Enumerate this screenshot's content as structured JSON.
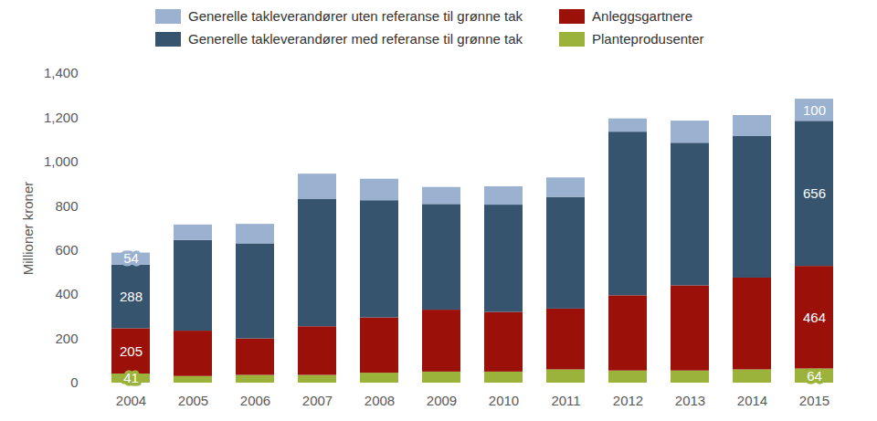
{
  "chart_data": {
    "type": "bar",
    "stacked": true,
    "data_labels": true,
    "legend": "top",
    "grid": false,
    "y_label": "Millioner kroner",
    "categories": [
      "2004",
      "2005",
      "2006",
      "2007",
      "2008",
      "2009",
      "2010",
      "2011",
      "2012",
      "2013",
      "2014",
      "2015"
    ],
    "ylim": [
      0,
      1400
    ],
    "yticks": [
      0,
      200,
      400,
      600,
      800,
      {
        "value": 1000,
        "label": "1,000"
      },
      {
        "value": 1200,
        "label": "1,200"
      },
      {
        "value": 1400,
        "label": "1,400"
      }
    ],
    "series": [
      {
        "name": "Planteprodusenter",
        "color": "#9bb33b",
        "values": [
          41,
          30,
          35,
          35,
          45,
          50,
          50,
          60,
          55,
          55,
          60,
          64
        ],
        "value_labels": [
          "41",
          null,
          null,
          null,
          null,
          null,
          null,
          null,
          null,
          null,
          null,
          "64"
        ]
      },
      {
        "name": "Anleggsgartnere",
        "color": "#9b1008",
        "values": [
          205,
          205,
          165,
          220,
          250,
          280,
          270,
          275,
          340,
          385,
          415,
          464
        ],
        "value_labels": [
          "205",
          null,
          null,
          null,
          null,
          null,
          null,
          null,
          null,
          null,
          null,
          "464"
        ]
      },
      {
        "name": "Generelle takleverandører med referanse til grønne tak",
        "color": "#37546f",
        "values": [
          288,
          410,
          430,
          575,
          530,
          478,
          485,
          505,
          740,
          645,
          640,
          656
        ],
        "value_labels": [
          "288",
          null,
          null,
          null,
          null,
          null,
          null,
          null,
          null,
          null,
          null,
          "656"
        ]
      },
      {
        "name": "Generelle takleverandører uten referanse til grønne tak",
        "color": "#9bb1d0",
        "values": [
          54,
          70,
          88,
          115,
          97,
          77,
          83,
          88,
          60,
          100,
          95,
          100
        ],
        "value_labels": [
          "54",
          null,
          null,
          null,
          null,
          null,
          null,
          null,
          null,
          null,
          null,
          "100"
        ]
      }
    ]
  }
}
